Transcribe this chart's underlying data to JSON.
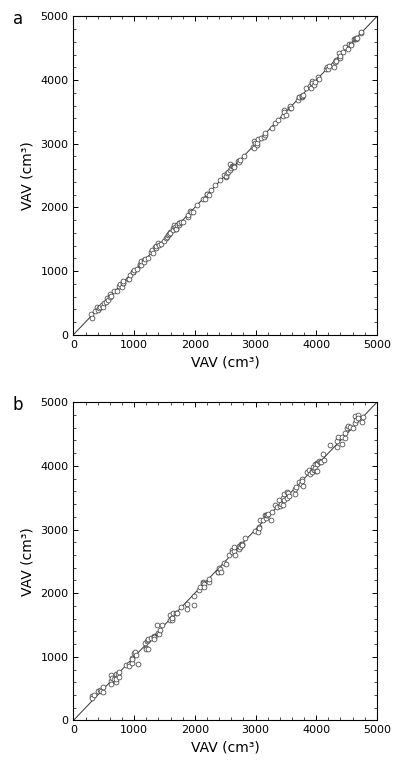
{
  "xlabel": "VAV (cm³)",
  "ylabel": "VAV (cm³)",
  "xlim": [
    0,
    5000
  ],
  "ylim": [
    0,
    5000
  ],
  "xticks": [
    0,
    1000,
    2000,
    3000,
    4000,
    5000
  ],
  "yticks": [
    0,
    1000,
    2000,
    3000,
    4000,
    5000
  ],
  "label_a": "a",
  "label_b": "b",
  "line_color": "#333333",
  "marker_edgecolor": "#333333",
  "marker_facecolor": "white",
  "background_color": "#ffffff",
  "scatter_seed_a": 42,
  "scatter_seed_b": 99,
  "n_points": 160,
  "x_min": 270,
  "x_max": 4800,
  "noise_a": 25,
  "noise_b": 55,
  "marker_size": 3.5,
  "marker_linewidth": 0.5,
  "line_width": 0.7,
  "font_size_label": 10,
  "font_size_tick": 8,
  "font_size_panel": 12
}
